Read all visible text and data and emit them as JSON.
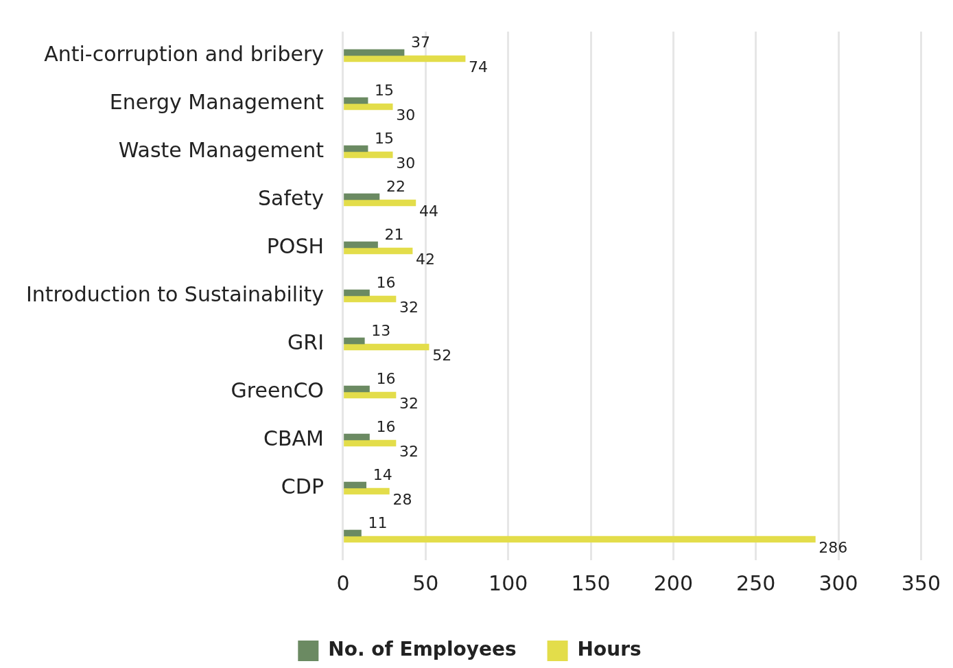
{
  "chart_data": {
    "type": "bar",
    "orientation": "horizontal",
    "categories": [
      "Anti-corruption and bribery",
      "Energy Management",
      "Waste Management",
      "Safety",
      "POSH",
      "Introduction to Sustainability",
      "GRI",
      "GreenCO",
      "CBAM",
      "CDP",
      null
    ],
    "series": [
      {
        "name": "No. of Employees",
        "color": "#6b8a62",
        "values": [
          37,
          15,
          15,
          22,
          21,
          16,
          13,
          16,
          16,
          14,
          11
        ]
      },
      {
        "name": "Hours",
        "color": "#e3dd4a",
        "values": [
          74,
          30,
          30,
          44,
          42,
          32,
          52,
          32,
          32,
          28,
          286
        ]
      }
    ],
    "xlim": [
      0,
      350
    ],
    "xticks": [
      0,
      50,
      100,
      150,
      200,
      250,
      300,
      350
    ],
    "grid": "x",
    "legend": "bottom",
    "data_labels": true
  }
}
